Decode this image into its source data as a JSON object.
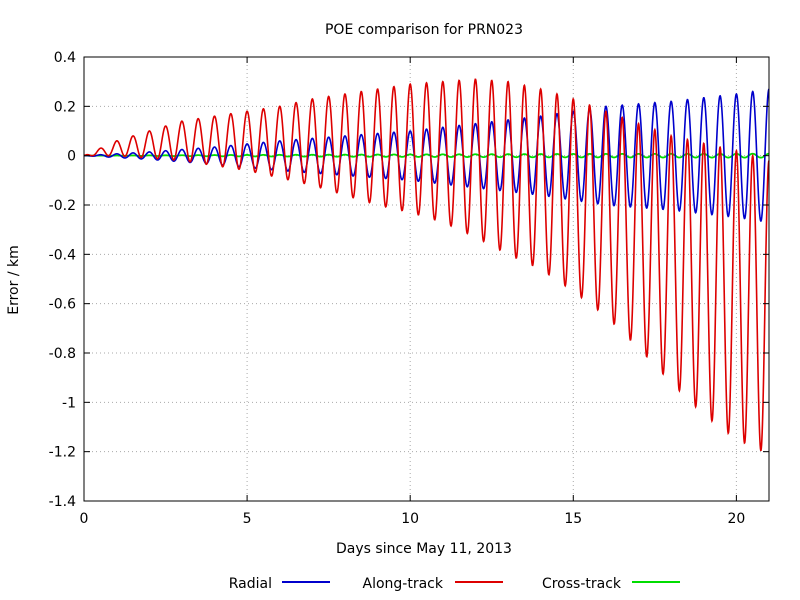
{
  "chart_data": {
    "type": "line",
    "title": "POE comparison for PRN023",
    "xlabel": "Days since May 11, 2013",
    "ylabel": "Error / km",
    "xlim": [
      0,
      21
    ],
    "ylim": [
      -1.4,
      0.4
    ],
    "xticks": [
      0,
      5,
      10,
      15,
      20
    ],
    "yticks": [
      -1.4,
      -1.2,
      -1,
      -0.8,
      -0.6,
      -0.4,
      -0.2,
      0,
      0.2,
      0.4
    ],
    "ytick_labels": [
      "-1.4",
      "-1.2",
      "-1",
      "-0.8",
      "-0.6",
      "-0.4",
      "-0.2",
      "0",
      "0.2",
      "0.4"
    ],
    "grid": true,
    "legend_position": "bottom",
    "period_days": 0.5,
    "series": [
      {
        "name": "Radial",
        "color": "#0000cc",
        "envelope": {
          "x": [
            0,
            2,
            4,
            6,
            8,
            10,
            12,
            14,
            16,
            18,
            20,
            21
          ],
          "max": [
            0.0,
            0.015,
            0.035,
            0.06,
            0.08,
            0.1,
            0.13,
            0.16,
            0.2,
            0.22,
            0.25,
            0.27
          ],
          "min": [
            0.0,
            -0.015,
            -0.035,
            -0.06,
            -0.08,
            -0.1,
            -0.13,
            -0.16,
            -0.2,
            -0.22,
            -0.25,
            -0.27
          ]
        }
      },
      {
        "name": "Along-track",
        "color": "#dd0000",
        "envelope": {
          "x": [
            0,
            1,
            2,
            3,
            4,
            5,
            6,
            7,
            8,
            9,
            10,
            11,
            12,
            13,
            14,
            15,
            16,
            17,
            18,
            19,
            20,
            21
          ],
          "max": [
            0.0,
            0.06,
            0.1,
            0.14,
            0.16,
            0.18,
            0.2,
            0.23,
            0.25,
            0.27,
            0.29,
            0.3,
            0.31,
            0.3,
            0.27,
            0.23,
            0.18,
            0.13,
            0.08,
            0.05,
            0.02,
            -0.02
          ],
          "min": [
            0.0,
            0.0,
            -0.01,
            -0.02,
            -0.04,
            -0.06,
            -0.09,
            -0.12,
            -0.16,
            -0.2,
            -0.23,
            -0.27,
            -0.33,
            -0.4,
            -0.46,
            -0.55,
            -0.65,
            -0.78,
            -0.92,
            -1.05,
            -1.15,
            -1.21
          ]
        }
      },
      {
        "name": "Cross-track",
        "color": "#00dd00",
        "envelope": {
          "x": [
            0,
            5,
            10,
            15,
            21
          ],
          "max": [
            0.0,
            0.003,
            0.005,
            0.007,
            0.008
          ],
          "min": [
            0.0,
            -0.003,
            -0.005,
            -0.007,
            -0.008
          ]
        }
      }
    ]
  }
}
